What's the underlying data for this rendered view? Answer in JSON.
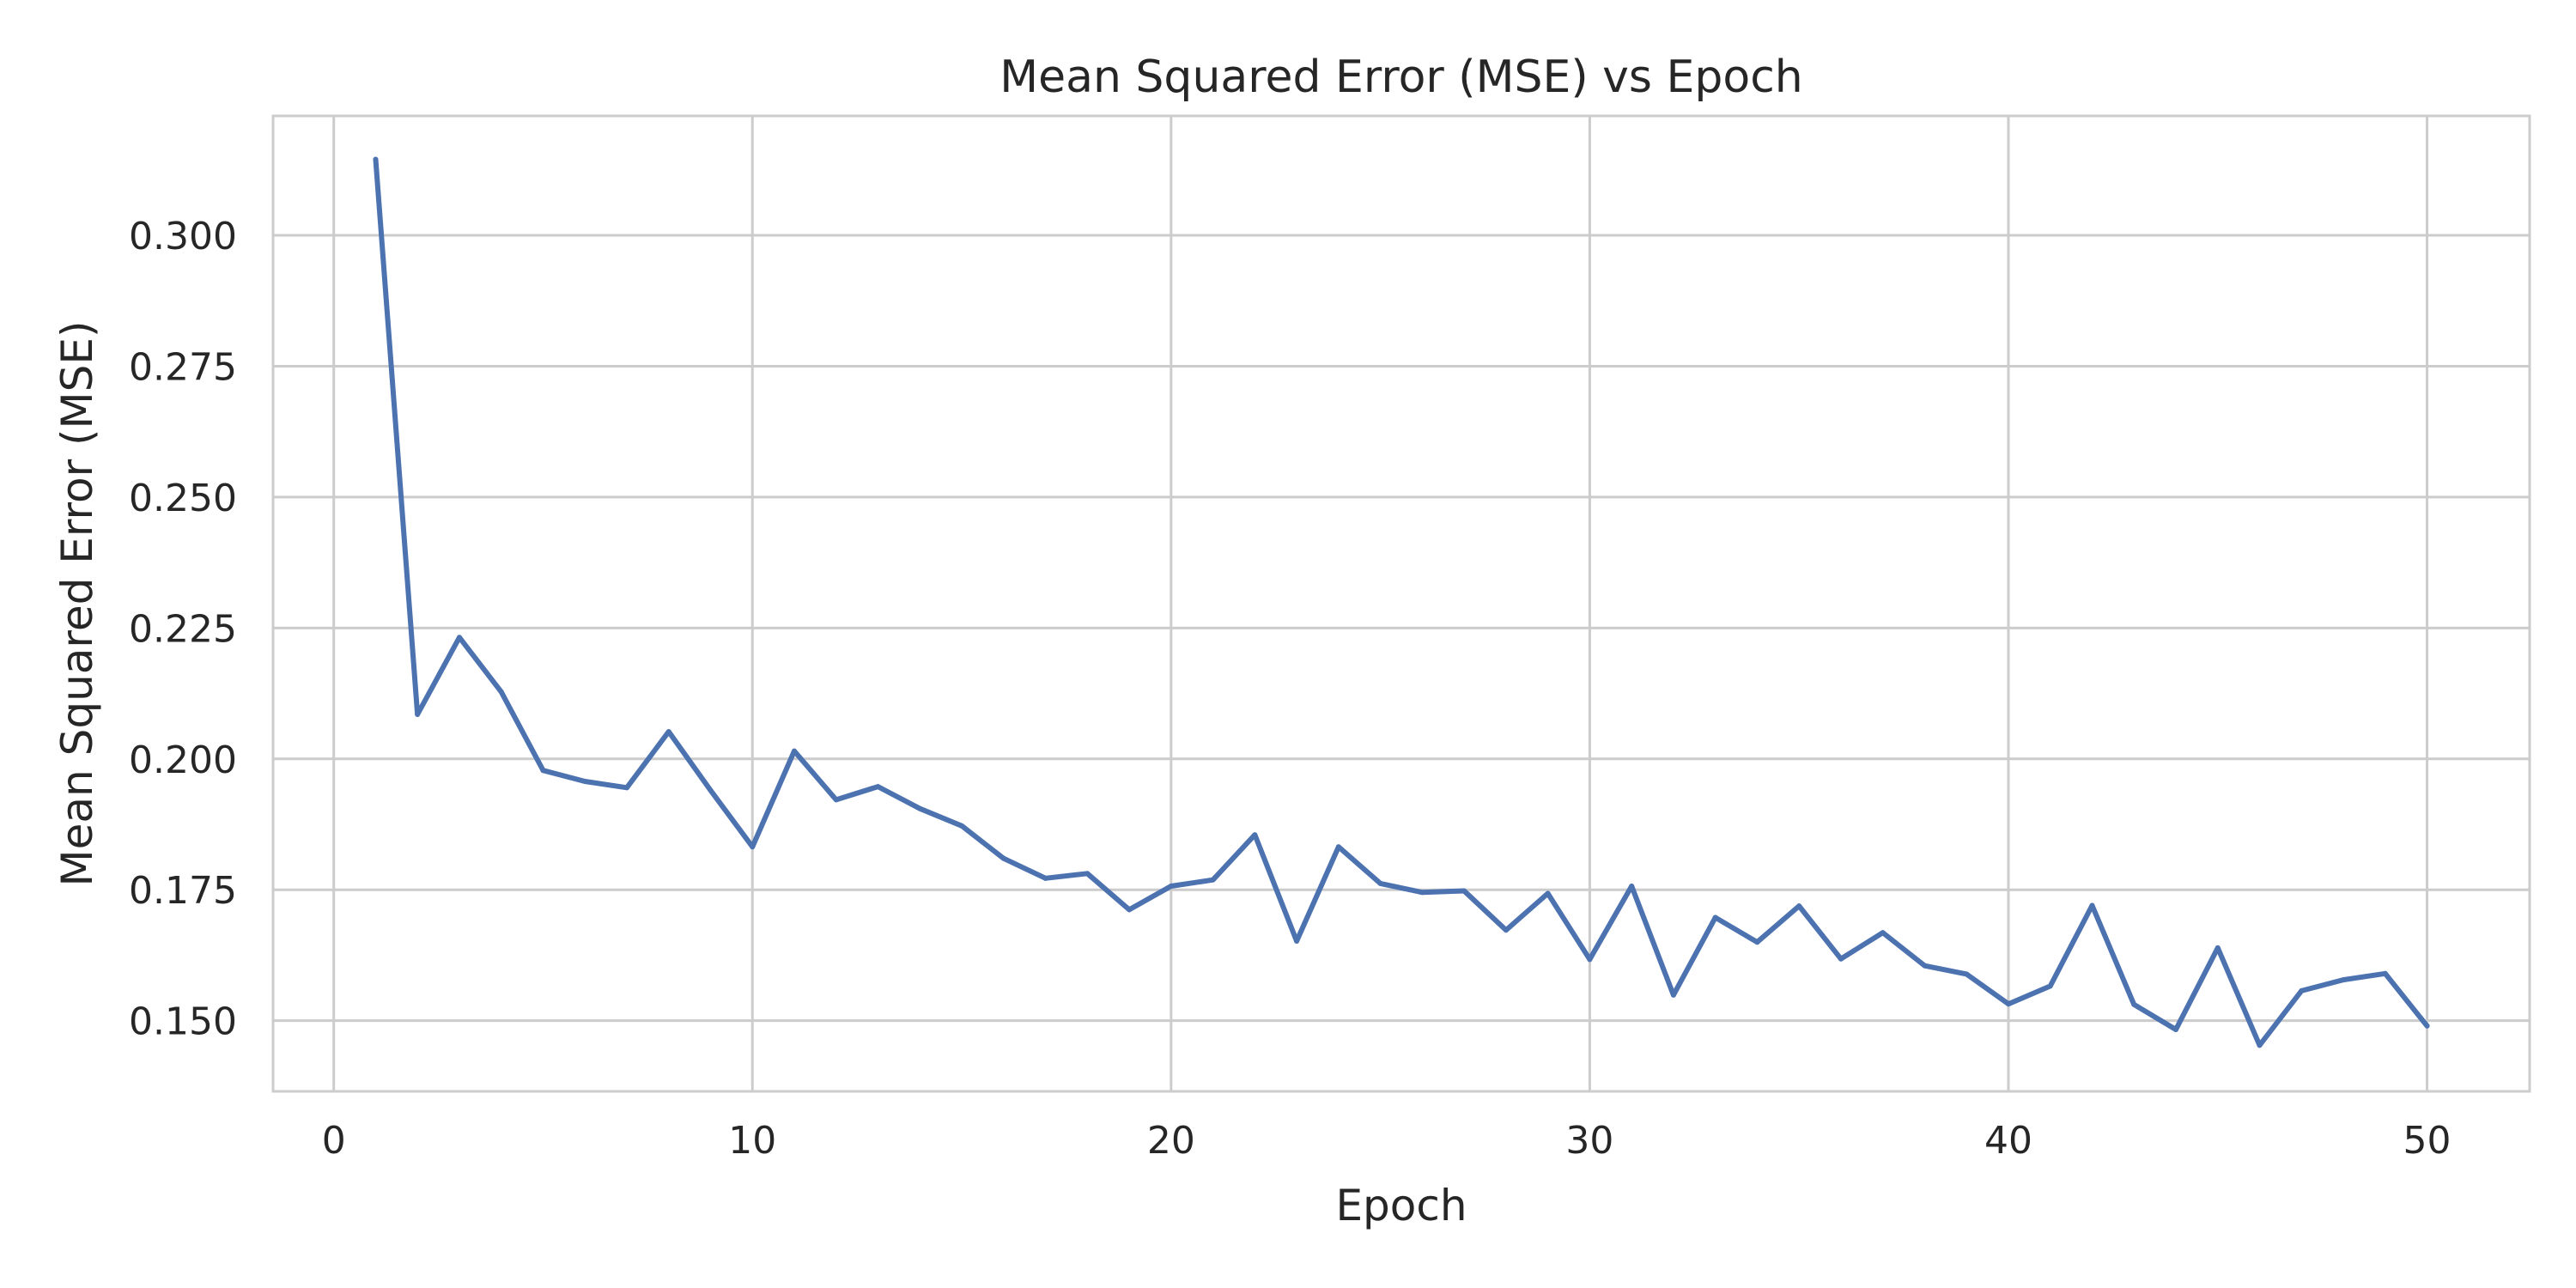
{
  "chart_data": {
    "type": "line",
    "title": "Mean Squared Error (MSE) vs Epoch",
    "xlabel": "Epoch",
    "ylabel": "Mean Squared Error (MSE)",
    "xlim": [
      -1.45,
      52.45
    ],
    "ylim": [
      0.1365,
      0.3228
    ],
    "xticks": [
      0,
      10,
      20,
      30,
      40,
      50
    ],
    "yticks": [
      0.15,
      0.175,
      0.2,
      0.225,
      0.25,
      0.275,
      0.3
    ],
    "ytick_labels": [
      "0.150",
      "0.175",
      "0.200",
      "0.225",
      "0.250",
      "0.275",
      "0.300"
    ],
    "grid": true,
    "series": [
      {
        "color": "#4C72B0",
        "x": [
          1,
          2,
          3,
          4,
          5,
          6,
          7,
          8,
          9,
          10,
          11,
          12,
          13,
          14,
          15,
          16,
          17,
          18,
          19,
          20,
          21,
          22,
          23,
          24,
          25,
          26,
          27,
          28,
          29,
          30,
          31,
          32,
          33,
          34,
          35,
          36,
          37,
          38,
          39,
          40,
          41,
          42,
          43,
          44,
          45,
          46,
          47,
          48,
          49,
          50
        ],
        "y": [
          0.3145,
          0.2085,
          0.2232,
          0.2128,
          0.1978,
          0.1957,
          0.1945,
          0.2052,
          0.194,
          0.1832,
          0.2015,
          0.1922,
          0.1947,
          0.1905,
          0.1872,
          0.181,
          0.1772,
          0.1781,
          0.1712,
          0.1757,
          0.1769,
          0.1855,
          0.1652,
          0.1832,
          0.1762,
          0.1745,
          0.1748,
          0.1673,
          0.1743,
          0.1617,
          0.1757,
          0.1549,
          0.1697,
          0.165,
          0.1719,
          0.1618,
          0.1668,
          0.1605,
          0.1589,
          0.1532,
          0.1566,
          0.172,
          0.1531,
          0.1483,
          0.1639,
          0.1453,
          0.1557,
          0.1578,
          0.159,
          0.149
        ]
      }
    ]
  },
  "colors": {
    "line": "#4C72B0",
    "grid": "#cccccc",
    "spine": "#cccccc",
    "text": "#262626"
  }
}
